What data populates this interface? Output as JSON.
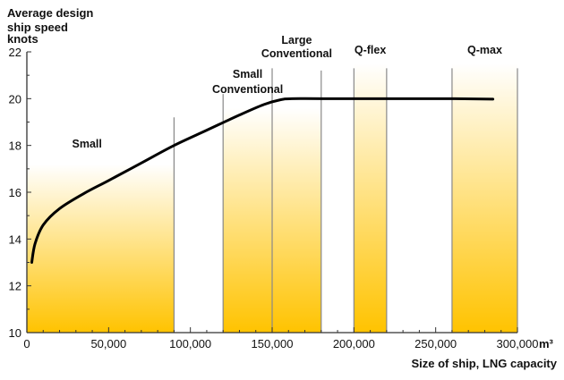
{
  "chart_data": {
    "type": "line",
    "ylabel_lines": [
      "Average design",
      "ship speed",
      "knots"
    ],
    "xlabel": "Size of ship, LNG capacity",
    "x_unit": "m³",
    "xlim": [
      0,
      300000
    ],
    "ylim": [
      10,
      22
    ],
    "x_ticks": [
      0,
      50000,
      100000,
      150000,
      200000,
      250000,
      300000
    ],
    "x_tick_labels": [
      "0",
      "50,000",
      "100,000",
      "150,000",
      "200,000",
      "250,000",
      "300,000"
    ],
    "y_ticks": [
      10,
      12,
      14,
      16,
      18,
      20,
      22
    ],
    "y_tick_labels": [
      "10",
      "12",
      "14",
      "16",
      "18",
      "20",
      "22"
    ],
    "grid": false,
    "bands": [
      {
        "label_lines": [
          "Small"
        ],
        "x_range": [
          0,
          90000
        ]
      },
      {
        "label_lines": [
          "Small",
          "Conventional"
        ],
        "x_range": [
          120000,
          150000
        ]
      },
      {
        "label_lines": [
          "Large",
          "Conventional"
        ],
        "x_range": [
          150000,
          180000
        ]
      },
      {
        "label_lines": [
          "Q-flex"
        ],
        "x_range": [
          200000,
          220000
        ]
      },
      {
        "label_lines": [
          "Q-max"
        ],
        "x_range": [
          260000,
          300000
        ]
      }
    ],
    "series": [
      {
        "x": [
          3000,
          5000,
          10000,
          20000,
          35000,
          50000,
          70000,
          90000,
          110000,
          130000,
          145000,
          155000,
          162000,
          180000,
          220000,
          260000,
          285000
        ],
        "y": [
          13.0,
          13.8,
          14.6,
          15.3,
          15.95,
          16.5,
          17.25,
          18.0,
          18.65,
          19.3,
          19.75,
          19.95,
          20.0,
          20.0,
          20.0,
          20.0,
          19.98
        ]
      }
    ],
    "colors": {
      "band_bottom": "#ffc300",
      "band_top": "#ffffff",
      "line": "#000000",
      "axis": "#333333",
      "divider": "#888888"
    }
  }
}
